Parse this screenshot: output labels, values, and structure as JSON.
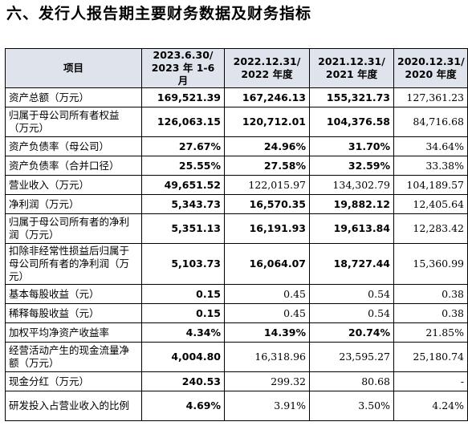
{
  "title": "六、发行人报告期主要财务数据及财务指标",
  "header": [
    "项目",
    "2023.6.30/\n2023 年 1-6 月",
    "2022.12.31/\n2022 年度",
    "2021.12.31/\n2021 年度",
    "2020.12.31/\n2020 年度"
  ],
  "rows": [
    {
      "label": "资产总额（万元）",
      "values": [
        "169,521.39",
        "167,246.13",
        "155,321.73",
        "127,361.23"
      ],
      "bold": [
        true,
        true,
        true,
        false
      ]
    },
    {
      "label": "归属于母公司所有者权益（万元）",
      "values": [
        "126,063.15",
        "120,712.01",
        "104,376.58",
        "84,716.68"
      ],
      "bold": [
        true,
        true,
        true,
        false
      ]
    },
    {
      "label": "资产负债率（母公司）",
      "values": [
        "27.67%",
        "24.96%",
        "31.70%",
        "34.64%"
      ],
      "bold": [
        true,
        true,
        true,
        false
      ]
    },
    {
      "label": "资产负债率（合并口径）",
      "values": [
        "25.55%",
        "27.58%",
        "32.59%",
        "33.38%"
      ],
      "bold": [
        true,
        true,
        true,
        false
      ]
    },
    {
      "label": "营业收入（万元）",
      "values": [
        "49,651.52",
        "122,015.97",
        "134,302.79",
        "104,189.57"
      ],
      "bold": [
        true,
        false,
        false,
        false
      ]
    },
    {
      "label": "净利润（万元）",
      "values": [
        "5,343.73",
        "16,570.35",
        "19,882.12",
        "12,405.64"
      ],
      "bold": [
        true,
        true,
        true,
        false
      ]
    },
    {
      "label": "归属于母公司所有者的净利润（万元）",
      "values": [
        "5,351.13",
        "16,191.93",
        "19,613.84",
        "12,283.42"
      ],
      "bold": [
        true,
        true,
        true,
        false
      ]
    },
    {
      "label": "扣除非经常性损益后归属于母公司所有者的净利润（万元）",
      "values": [
        "5,103.73",
        "16,064.07",
        "18,727.44",
        "15,360.99"
      ],
      "bold": [
        true,
        true,
        true,
        false
      ]
    },
    {
      "label": "基本每股收益（元）",
      "values": [
        "0.15",
        "0.45",
        "0.54",
        "0.38"
      ],
      "bold": [
        true,
        false,
        false,
        false
      ]
    },
    {
      "label": "稀释每股收益（元）",
      "values": [
        "0.15",
        "0.45",
        "0.54",
        "0.38"
      ],
      "bold": [
        true,
        false,
        false,
        false
      ]
    },
    {
      "label": "加权平均净资产收益率",
      "values": [
        "4.34%",
        "14.39%",
        "20.74%",
        "21.85%"
      ],
      "bold": [
        true,
        true,
        true,
        false
      ]
    },
    {
      "label": "经营活动产生的现金流量净额（万元）",
      "values": [
        "4,004.80",
        "16,318.96",
        "23,595.27",
        "25,180.74"
      ],
      "bold": [
        true,
        false,
        false,
        false
      ]
    },
    {
      "label": "现金分红（万元）",
      "values": [
        "240.53",
        "299.32",
        "80.68",
        "-"
      ],
      "bold": [
        true,
        false,
        false,
        false
      ]
    },
    {
      "label": "研发投入占营业收入的比例",
      "values": [
        "4.69%",
        "3.91%",
        "3.50%",
        "4.24%"
      ],
      "bold": [
        true,
        false,
        false,
        false
      ]
    }
  ]
}
